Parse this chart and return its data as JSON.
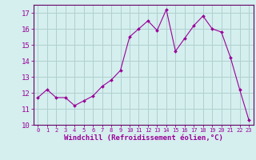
{
  "x": [
    0,
    1,
    2,
    3,
    4,
    5,
    6,
    7,
    8,
    9,
    10,
    11,
    12,
    13,
    14,
    15,
    16,
    17,
    18,
    19,
    20,
    21,
    22,
    23
  ],
  "y": [
    11.7,
    12.2,
    11.7,
    11.7,
    11.2,
    11.5,
    11.8,
    12.4,
    12.8,
    13.4,
    15.5,
    16.0,
    16.5,
    15.9,
    17.2,
    14.6,
    15.4,
    16.2,
    16.8,
    16.0,
    15.8,
    14.2,
    12.2,
    10.3
  ],
  "line_color": "#990099",
  "marker_color": "#990099",
  "bg_color": "#d5eeee",
  "grid_color": "#b0d0d0",
  "axis_color": "#660066",
  "xlabel": "Windchill (Refroidissement éolien,°C)",
  "ylim": [
    10,
    17.5
  ],
  "yticks": [
    10,
    11,
    12,
    13,
    14,
    15,
    16,
    17
  ],
  "xlim": [
    -0.5,
    23.5
  ],
  "font_color": "#990099",
  "xtick_fontsize": 5.0,
  "ytick_fontsize": 6.5,
  "xlabel_fontsize": 6.5
}
